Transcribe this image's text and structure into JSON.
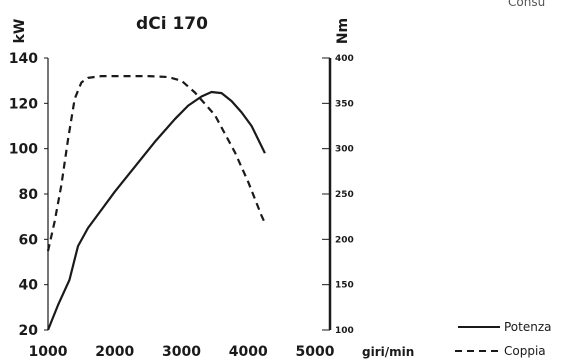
{
  "corner_text": "Consu",
  "chart_data": {
    "type": "line",
    "title": "dCi 170",
    "ylabel": "kW",
    "y2label": "Nm",
    "xlabel": "giri/min",
    "xlim": [
      1000,
      5000
    ],
    "ylim": [
      20,
      140
    ],
    "y2lim": [
      100,
      400
    ],
    "x_ticks": [
      "1000",
      "2000",
      "3000",
      "4000",
      "5000"
    ],
    "y_ticks": [
      "20",
      "40",
      "60",
      "80",
      "100",
      "120",
      "140"
    ],
    "y2_ticks": [
      "100",
      "150",
      "200",
      "250",
      "300",
      "350",
      "400"
    ],
    "legend_position": "bottom-right",
    "series": [
      {
        "name": "Potenza",
        "axis": "left",
        "style": "solid",
        "x": [
          1000,
          1150,
          1320,
          1450,
          1600,
          1800,
          2000,
          2300,
          2600,
          2900,
          3100,
          3300,
          3450,
          3600,
          3750,
          3900,
          4050,
          4200,
          4250
        ],
        "y": [
          20,
          31,
          42,
          57,
          65,
          73,
          81,
          92,
          103,
          113,
          119,
          123,
          125,
          124.5,
          121,
          116,
          110,
          101,
          98
        ]
      },
      {
        "name": "Coppia",
        "axis": "right",
        "style": "dashed",
        "x": [
          1000,
          1100,
          1200,
          1300,
          1400,
          1500,
          1600,
          1800,
          2000,
          2500,
          2800,
          3000,
          3200,
          3500,
          3800,
          4000,
          4200,
          4250
        ],
        "y": [
          187,
          220,
          260,
          310,
          355,
          373,
          378,
          380,
          380,
          380,
          379,
          375,
          362,
          337,
          296,
          263,
          226,
          218
        ]
      }
    ]
  }
}
